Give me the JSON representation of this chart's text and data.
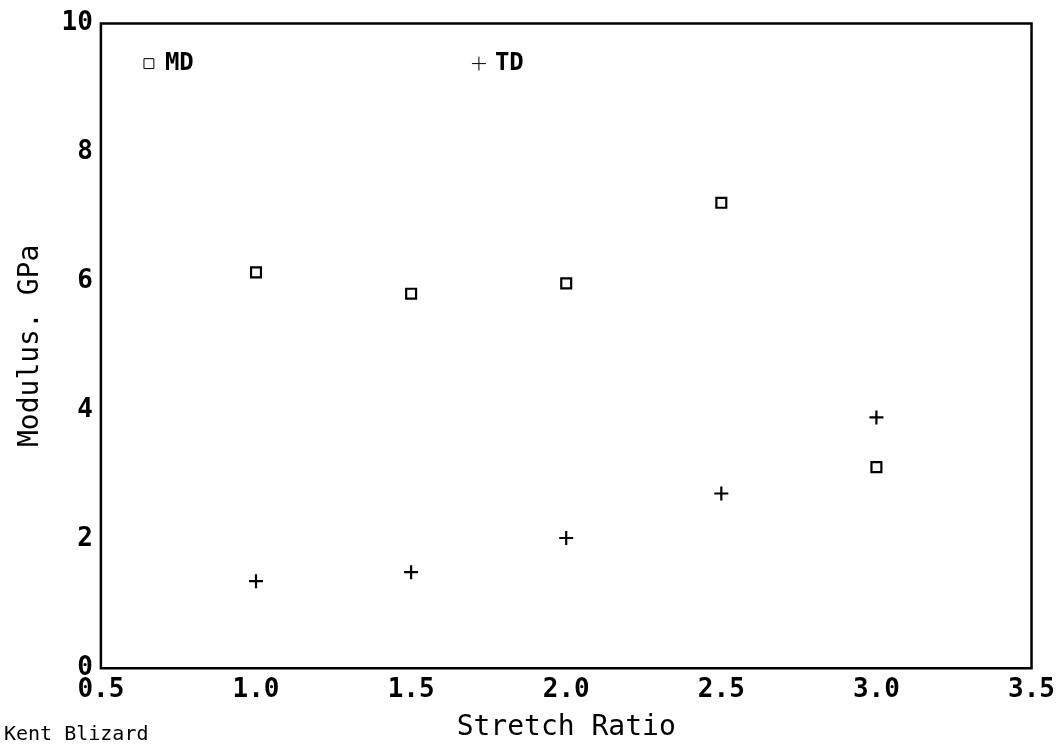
{
  "chart_data": {
    "type": "scatter",
    "xlabel": "Stretch Ratio",
    "ylabel": "Modulus. GPa",
    "series": [
      {
        "name": "MD",
        "color": "#000000",
        "marker": "square",
        "x": [
          1.0,
          1.5,
          2.0,
          2.5,
          3.0
        ],
        "values": [
          6.14,
          5.81,
          5.97,
          7.22,
          3.12
        ]
      },
      {
        "name": "TD",
        "color": "#000000",
        "marker": "cross",
        "x": [
          1.0,
          1.5,
          2.0,
          2.5,
          3.0
        ],
        "values": [
          1.35,
          1.49,
          2.02,
          2.71,
          3.89
        ]
      }
    ],
    "xlim": [
      0.5,
      3.5
    ],
    "xticks": [
      0.5,
      {
        "value": 1,
        "label": "1.0"
      },
      1.5,
      {
        "value": 2,
        "label": "2.0"
      },
      2.5,
      {
        "value": 3,
        "label": "3.0"
      },
      3.5
    ],
    "ylim": [
      0,
      10
    ],
    "yticks": [
      0,
      2,
      4,
      6,
      8,
      10
    ],
    "grid": false,
    "legend": "top left",
    "annotations": [
      "Kent Blizard"
    ]
  }
}
